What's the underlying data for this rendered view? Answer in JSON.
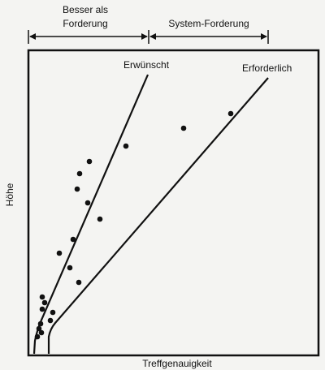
{
  "header": {
    "left": [
      "Besser als",
      "Forderung"
    ],
    "right": "System-Forderung"
  },
  "lines": {
    "desired": "Erwünscht",
    "required": "Erforderlich"
  },
  "axes": {
    "y": "Höhe",
    "x": "Treffgenauigkeit"
  }
}
